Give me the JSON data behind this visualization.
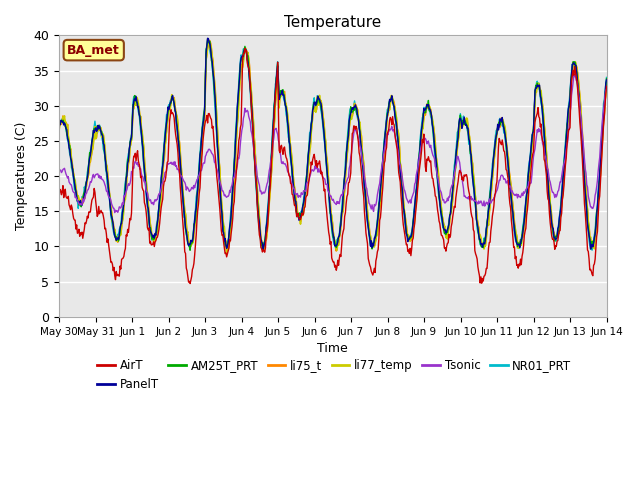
{
  "title": "Temperature",
  "xlabel": "Time",
  "ylabel": "Temperatures (C)",
  "ylim": [
    0,
    40
  ],
  "background_color": "#e8e8e8",
  "annotation_text": "BA_met",
  "annotation_bg": "#ffff99",
  "annotation_border": "#8b4513",
  "annotation_text_color": "#8b0000",
  "series": {
    "AirT": {
      "color": "#cc0000",
      "lw": 1.0
    },
    "PanelT": {
      "color": "#000099",
      "lw": 1.0
    },
    "AM25T_PRT": {
      "color": "#00aa00",
      "lw": 1.0
    },
    "li75_t": {
      "color": "#ff8800",
      "lw": 1.2
    },
    "li77_temp": {
      "color": "#cccc00",
      "lw": 1.2
    },
    "Tsonic": {
      "color": "#9933cc",
      "lw": 1.0
    },
    "NR01_PRT": {
      "color": "#00bbcc",
      "lw": 1.0
    }
  },
  "tick_labels": [
    "May 30",
    "May 31",
    "Jun 1",
    "Jun 2",
    "Jun 3",
    "Jun 4",
    "Jun 5",
    "Jun 6",
    "Jun 7",
    "Jun 8",
    "Jun 9",
    "Jun 10",
    "Jun 11",
    "Jun 12",
    "Jun 13",
    "Jun 14"
  ],
  "yticks": [
    0,
    5,
    10,
    15,
    20,
    25,
    30,
    35,
    40
  ]
}
